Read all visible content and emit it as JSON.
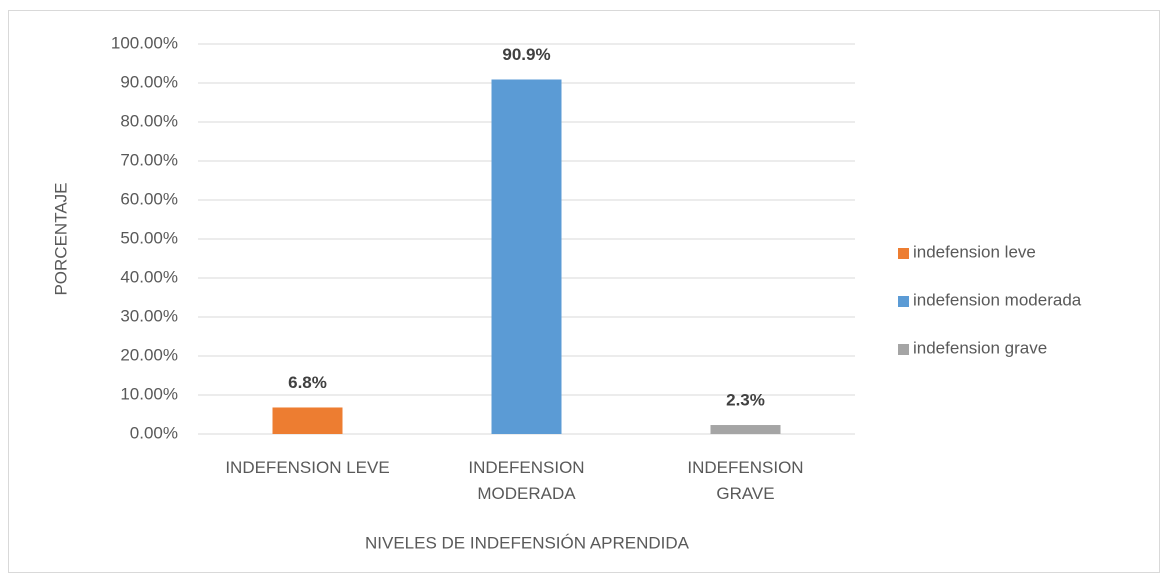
{
  "chart_data": {
    "type": "bar",
    "categories": [
      "INDEFENSION LEVE",
      "INDEFENSION MODERADA",
      "INDEFENSION GRAVE"
    ],
    "series": [
      {
        "name": "indefension leve",
        "color": "#ed7d31",
        "values": [
          6.8,
          null,
          null
        ],
        "value_labels": [
          "6.8%",
          null,
          null
        ]
      },
      {
        "name": "indefension moderada",
        "color": "#5b9bd5",
        "values": [
          null,
          90.9,
          null
        ],
        "value_labels": [
          null,
          "90.9%",
          null
        ]
      },
      {
        "name": "indefension grave",
        "color": "#a5a5a5",
        "values": [
          null,
          null,
          2.3
        ],
        "value_labels": [
          null,
          null,
          "2.3%"
        ]
      }
    ],
    "ylim": [
      0,
      100
    ],
    "yticks": [
      {
        "value": 0,
        "label": "0.00%"
      },
      {
        "value": 10,
        "label": "10.00%"
      },
      {
        "value": 20,
        "label": "20.00%"
      },
      {
        "value": 30,
        "label": "30.00%"
      },
      {
        "value": 40,
        "label": "40.00%"
      },
      {
        "value": 50,
        "label": "50.00%"
      },
      {
        "value": 60,
        "label": "60.00%"
      },
      {
        "value": 70,
        "label": "70.00%"
      },
      {
        "value": 80,
        "label": "80.00%"
      },
      {
        "value": 90,
        "label": "90.00%"
      },
      {
        "value": 100,
        "label": "100.00%"
      }
    ],
    "ylabel": "PORCENTAJE",
    "xlabel": "NIVELES DE INDEFENSIÓN APRENDIDA",
    "grid": true,
    "legend": "right"
  }
}
